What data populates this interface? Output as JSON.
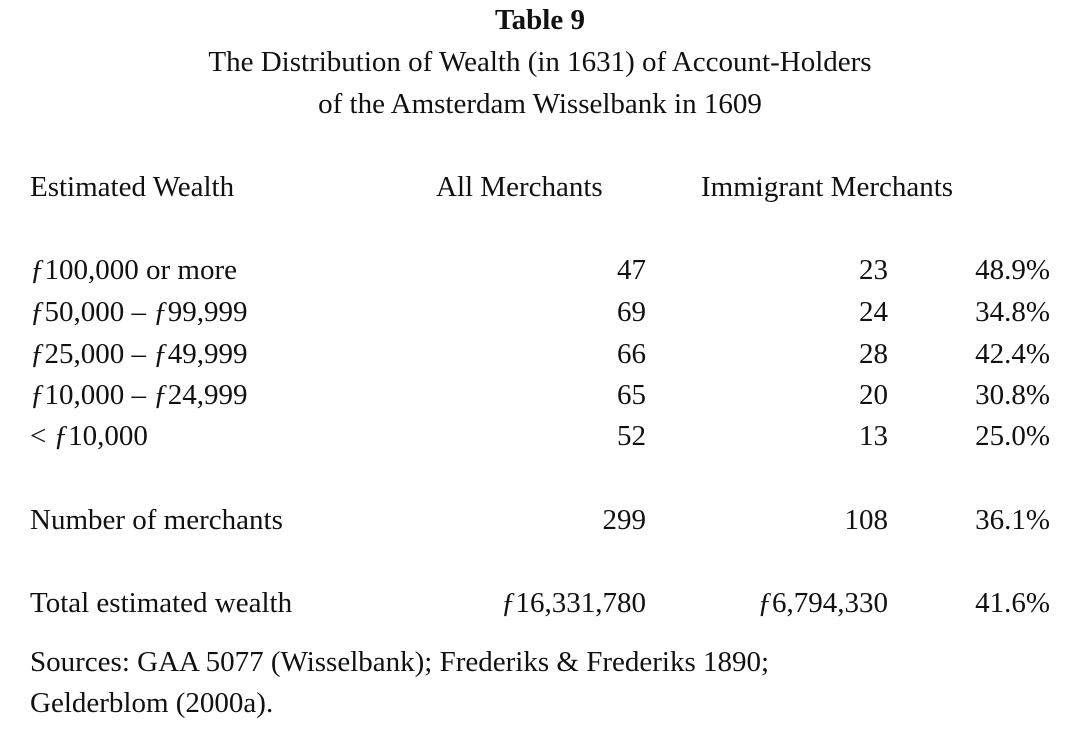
{
  "table_label": "Table 9",
  "title_line1": "The Distribution of Wealth (in 1631) of Account-Holders",
  "title_line2": "of the Amsterdam Wisselbank in 1609",
  "headers": {
    "estimated_wealth": "Estimated Wealth",
    "all_merchants": "All Merchants",
    "immigrant_merchants": "Immigrant Merchants"
  },
  "rows": [
    {
      "label_prefix": "",
      "label": "100,000 or more",
      "all": "47",
      "immigrant": "23",
      "pct": "48.9%"
    },
    {
      "label": "50,000 – ",
      "label_b": "99,999",
      "all": "69",
      "immigrant": "24",
      "pct": "34.8%"
    },
    {
      "label": "25,000 – ",
      "label_b": "49,999",
      "all": "66",
      "immigrant": "28",
      "pct": "42.4%"
    },
    {
      "label": "10,000 – ",
      "label_b": "24,999",
      "all": "65",
      "immigrant": "20",
      "pct": "30.8%"
    },
    {
      "label_prefix": "< ",
      "label": "10,000",
      "all": "52",
      "immigrant": "13",
      "pct": "25.0%"
    }
  ],
  "florin_symbol": "ƒ",
  "number_of_merchants": {
    "label": "Number of merchants",
    "all": "299",
    "immigrant": "108",
    "pct": "36.1%"
  },
  "total_wealth": {
    "label": "Total estimated wealth",
    "all": "16,331,780",
    "immigrant": "6,794,330",
    "pct": "41.6%"
  },
  "sources_line1": "Sources: GAA 5077 (Wisselbank); Frederiks & Frederiks 1890;",
  "sources_line2": "Gelderblom (2000a)."
}
